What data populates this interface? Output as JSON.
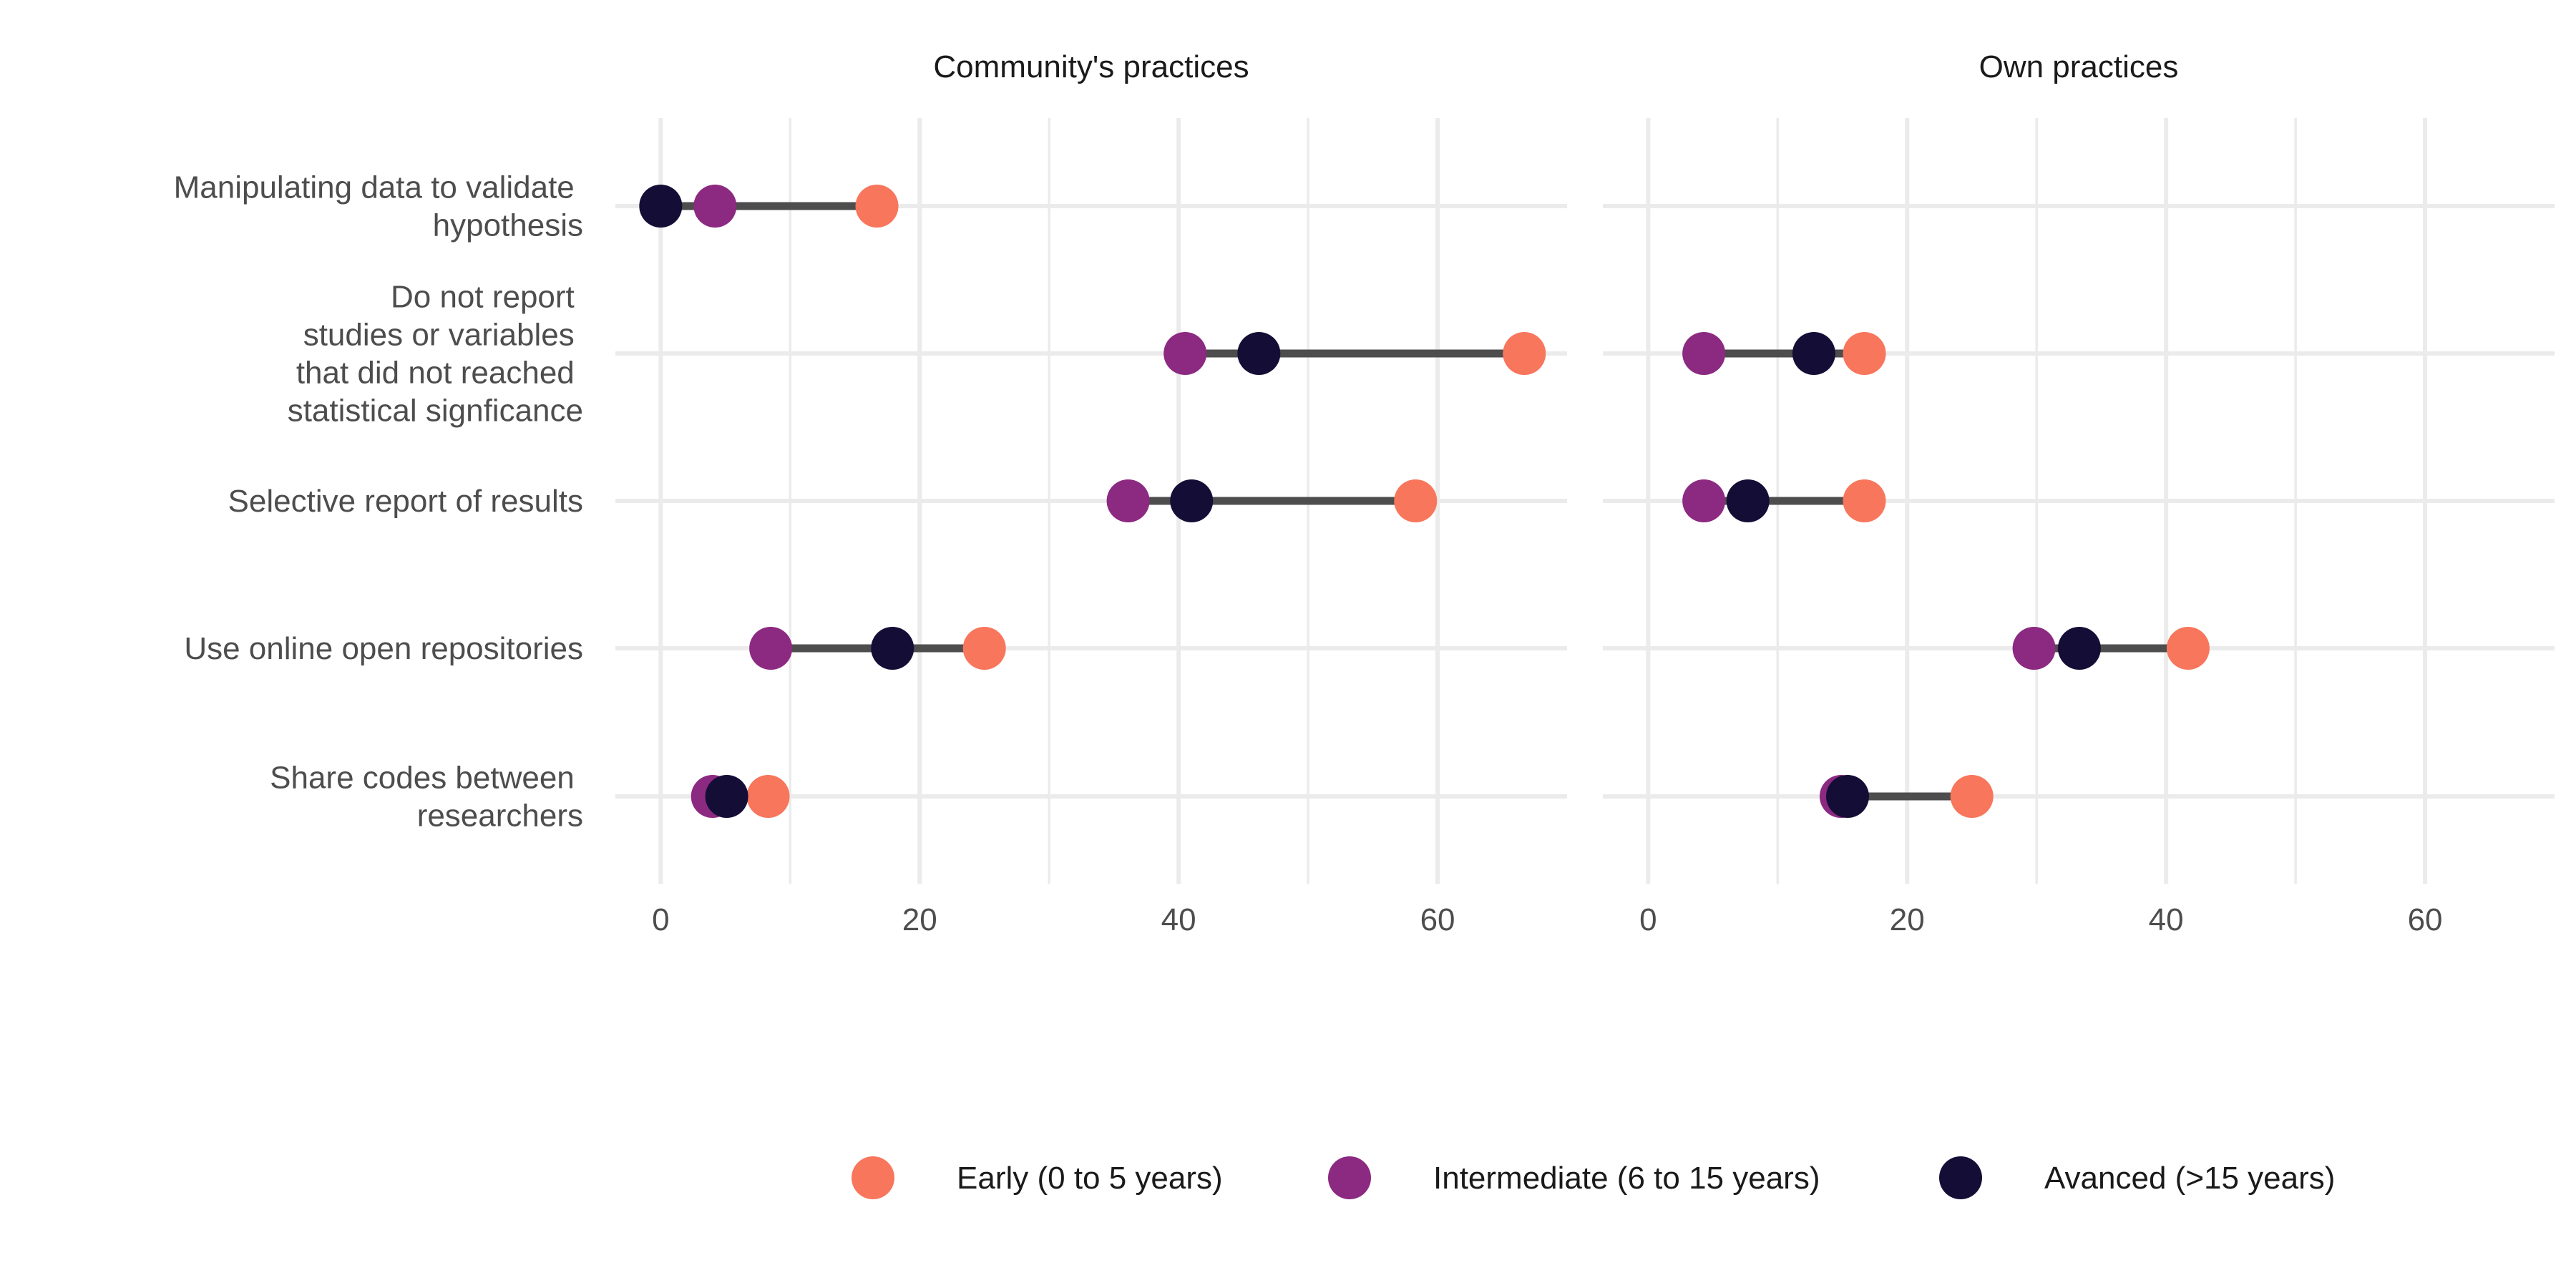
{
  "chart_data": {
    "type": "dumbbell",
    "categories": [
      [
        "Manipulating data to validate ",
        "hypothesis"
      ],
      [
        "Do not report ",
        "studies or variables ",
        "that did not reached ",
        "statistical signficance"
      ],
      [
        "Selective report of results"
      ],
      [
        "Use online open repositories"
      ],
      [
        "Share codes between ",
        "researchers"
      ]
    ],
    "series_names": [
      "Early (0 to 5 years)",
      "Intermediate (6 to 15 years)",
      "Avanced (>15 years)"
    ],
    "series_colors": [
      "#F8765C",
      "#8C2981",
      "#140E36"
    ],
    "panels": [
      {
        "title": "Community's practices",
        "values": [
          [
            16.7,
            4.2,
            0.0
          ],
          [
            66.7,
            40.5,
            46.2
          ],
          [
            58.3,
            36.1,
            41.0
          ],
          [
            25.0,
            8.5,
            17.9
          ],
          [
            8.3,
            4.0,
            5.1
          ]
        ]
      },
      {
        "title": "Own practices",
        "values": [
          [
            null,
            null,
            null
          ],
          [
            16.7,
            4.3,
            12.8
          ],
          [
            16.7,
            4.3,
            7.7
          ],
          [
            41.7,
            29.8,
            33.3
          ],
          [
            25.0,
            14.9,
            15.4
          ]
        ]
      }
    ],
    "xlim": [
      -3.5,
      70
    ],
    "xticks": [
      0,
      20,
      40,
      60
    ],
    "xlabel": "",
    "ylabel": "",
    "grid": true,
    "legend_position": "bottom"
  }
}
